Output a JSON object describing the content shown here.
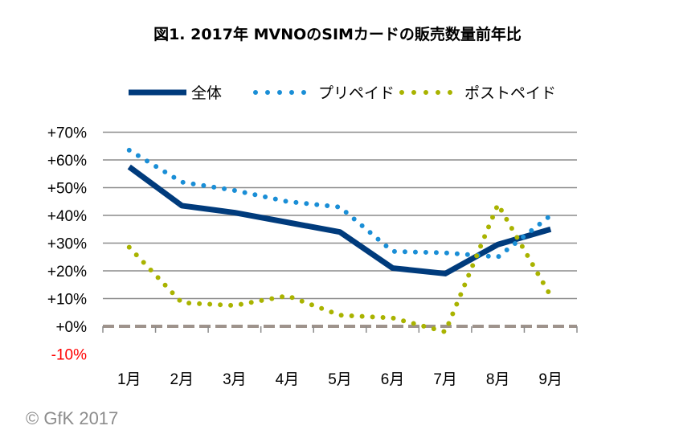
{
  "chart_data": {
    "type": "line",
    "title": "図1. 2017年 MVNOのSIMカードの販売数量前年比",
    "categories": [
      "1月",
      "2月",
      "3月",
      "4月",
      "5月",
      "6月",
      "7月",
      "8月",
      "9月"
    ],
    "ylim": [
      -10,
      70
    ],
    "yticks": [
      "-10%",
      "+0%",
      "+10%",
      "+20%",
      "+30%",
      "+40%",
      "+50%",
      "+60%",
      "+70%"
    ],
    "ytick_values": [
      -10,
      0,
      10,
      20,
      30,
      40,
      50,
      60,
      70
    ],
    "grid": true,
    "legend_position": "top",
    "series": [
      {
        "name": "全体",
        "values": [
          57.5,
          43.5,
          41,
          37.5,
          34,
          21,
          19,
          29.5,
          35
        ],
        "color": "#003b7c",
        "style": "solid"
      },
      {
        "name": "プリペイド",
        "values": [
          63.5,
          52,
          49,
          45,
          43,
          27,
          26.5,
          25,
          40
        ],
        "color": "#1a8ed6",
        "style": "dotted"
      },
      {
        "name": "ポストペイド",
        "values": [
          28.5,
          8.5,
          7.5,
          11,
          4,
          3,
          -2,
          44,
          11
        ],
        "color": "#a9b300",
        "style": "dotted"
      }
    ],
    "zero_line_color": "#9e938c",
    "negative_tick_color": "#ff0000"
  },
  "credit": "© GfK 2017"
}
